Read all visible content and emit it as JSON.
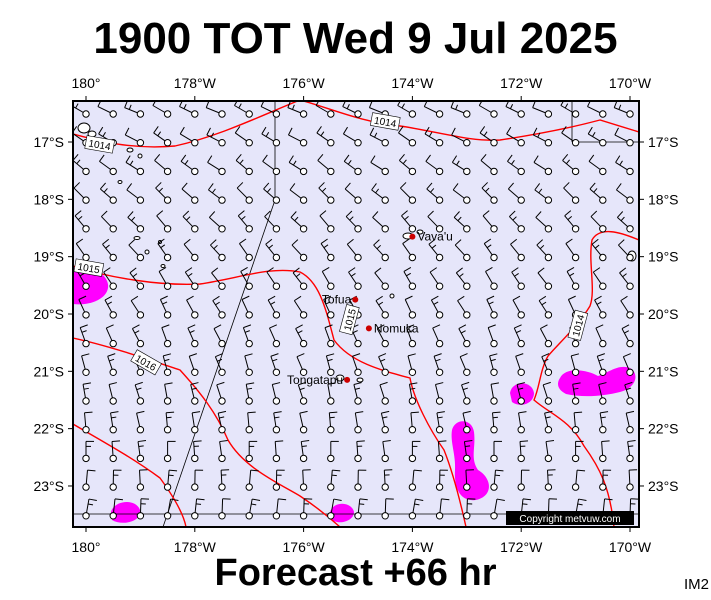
{
  "title": "1900 TOT Wed 9 Jul 2025",
  "footer": "Forecast +66 hr",
  "image_code": "IM2",
  "copyright": "Copyright metvuw.com",
  "colors": {
    "ocean": "#e6e6fa",
    "isobar": "#ff0000",
    "rain": "#ff00ff",
    "frame": "#000000",
    "place_marker": "#cc0000"
  },
  "axes": {
    "lon_ticks": [
      "180°",
      "178°W",
      "176°W",
      "174°W",
      "172°W",
      "170°W"
    ],
    "lat_ticks": [
      "17°S",
      "18°S",
      "19°S",
      "20°S",
      "21°S",
      "22°S",
      "23°S"
    ]
  },
  "places": [
    {
      "name": "Vava'u",
      "lon": -174.0,
      "lat": -18.65
    },
    {
      "name": "Tofua",
      "lon": -175.05,
      "lat": -19.75
    },
    {
      "name": "Nomuka",
      "lon": -174.8,
      "lat": -20.25
    },
    {
      "name": "Tongatapu",
      "lon": -175.2,
      "lat": -21.15
    }
  ],
  "isobar_labels": [
    {
      "text": "1014",
      "lon": -174.5,
      "lat": -16.65
    },
    {
      "text": "1014",
      "lon": -179.75,
      "lat": -17.05
    },
    {
      "text": "1015",
      "lon": -179.95,
      "lat": -19.2
    },
    {
      "text": "1015",
      "lon": -175.15,
      "lat": -20.1
    },
    {
      "text": "1016",
      "lon": -178.9,
      "lat": -20.85
    },
    {
      "text": "1014",
      "lon": -170.95,
      "lat": -20.2
    }
  ]
}
